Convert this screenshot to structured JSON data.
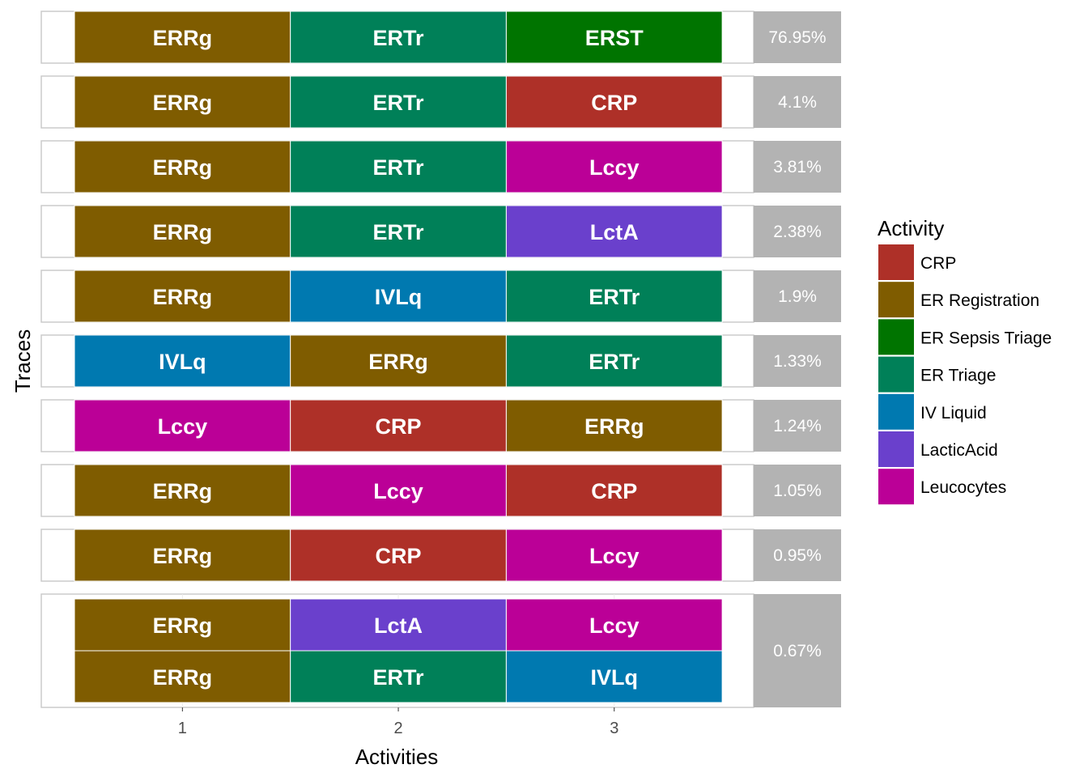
{
  "chart_data": {
    "type": "heatmap",
    "xlabel": "Activities",
    "ylabel": "Traces",
    "x_ticks": [
      "1",
      "2",
      "3"
    ],
    "legend_title": "Activity",
    "legend": [
      {
        "name": "CRP",
        "color": "#ae3028"
      },
      {
        "name": "ER Registration",
        "color": "#7f5c00"
      },
      {
        "name": "ER Sepsis Triage",
        "color": "#007400"
      },
      {
        "name": "ER Triage",
        "color": "#008058"
      },
      {
        "name": "IV Liquid",
        "color": "#0079b0"
      },
      {
        "name": "LacticAcid",
        "color": "#6a40cc"
      },
      {
        "name": "Leucocytes",
        "color": "#bb0097"
      }
    ],
    "colors": {
      "ERRg": "#7f5c00",
      "ERTr": "#008058",
      "ERST": "#007400",
      "CRP": "#ae3028",
      "Lccy": "#bb0097",
      "LctA": "#6a40cc",
      "IVLq": "#0079b0"
    },
    "facets": [
      {
        "percentage": "76.95%",
        "traces": [
          [
            "ERRg",
            "ERTr",
            "ERST"
          ]
        ]
      },
      {
        "percentage": "4.1%",
        "traces": [
          [
            "ERRg",
            "ERTr",
            "CRP"
          ]
        ]
      },
      {
        "percentage": "3.81%",
        "traces": [
          [
            "ERRg",
            "ERTr",
            "Lccy"
          ]
        ]
      },
      {
        "percentage": "2.38%",
        "traces": [
          [
            "ERRg",
            "ERTr",
            "LctA"
          ]
        ]
      },
      {
        "percentage": "1.9%",
        "traces": [
          [
            "ERRg",
            "IVLq",
            "ERTr"
          ]
        ]
      },
      {
        "percentage": "1.33%",
        "traces": [
          [
            "IVLq",
            "ERRg",
            "ERTr"
          ]
        ]
      },
      {
        "percentage": "1.24%",
        "traces": [
          [
            "Lccy",
            "CRP",
            "ERRg"
          ]
        ]
      },
      {
        "percentage": "1.05%",
        "traces": [
          [
            "ERRg",
            "Lccy",
            "CRP"
          ]
        ]
      },
      {
        "percentage": "0.95%",
        "traces": [
          [
            "ERRg",
            "CRP",
            "Lccy"
          ]
        ]
      },
      {
        "percentage": "0.67%",
        "traces": [
          [
            "ERRg",
            "LctA",
            "Lccy"
          ],
          [
            "ERRg",
            "ERTr",
            "IVLq"
          ]
        ]
      }
    ]
  }
}
